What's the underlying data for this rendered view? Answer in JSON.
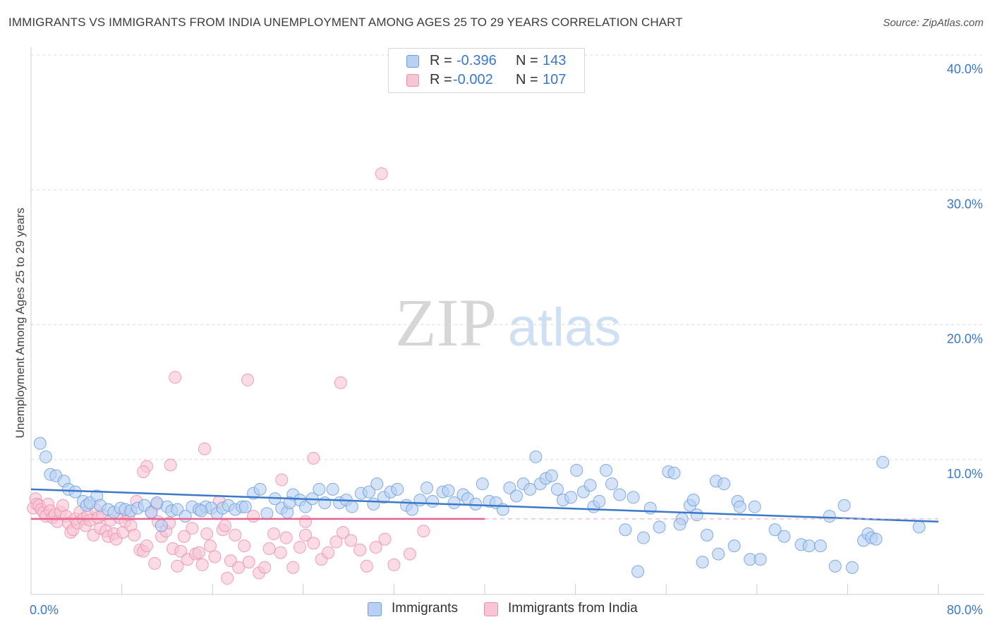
{
  "title": "IMMIGRANTS VS IMMIGRANTS FROM INDIA UNEMPLOYMENT AMONG AGES 25 TO 29 YEARS CORRELATION CHART",
  "source": "Source: ZipAtlas.com",
  "watermark": {
    "zip": "ZIP",
    "atlas": "atlas"
  },
  "stats": {
    "r_label": "R =",
    "n_label": "N =",
    "series1": {
      "r": "-0.396",
      "n": "143"
    },
    "series2": {
      "r": "-0.002",
      "n": "107"
    }
  },
  "colors": {
    "blue_fill": "#b8d1f3",
    "blue_stroke": "#6d9fe0",
    "blue_line": "#3a78c9",
    "pink_fill": "#f8c5d4",
    "pink_stroke": "#ee8fae",
    "pink_line": "#e8628d",
    "axis_text": "#3a78c9",
    "grid": "#dddddd"
  },
  "chart_data": {
    "type": "scatter",
    "title": "IMMIGRANTS VS IMMIGRANTS FROM INDIA UNEMPLOYMENT AMONG AGES 25 TO 29 YEARS CORRELATION CHART",
    "xlabel": "",
    "ylabel": "Unemployment Among Ages 25 to 29 years",
    "xlim": [
      0,
      80
    ],
    "ylim": [
      0,
      40
    ],
    "x_tick_labels": [
      "0.0%",
      "80.0%"
    ],
    "y_ticks": [
      10,
      20,
      30,
      40
    ],
    "y_tick_labels": [
      "10.0%",
      "20.0%",
      "30.0%",
      "40.0%"
    ],
    "legend_position": "bottom-center",
    "series": [
      {
        "name": "Immigrants",
        "r": -0.396,
        "n": 143,
        "trend": {
          "x": [
            0,
            80
          ],
          "y": [
            7.8,
            5.4
          ]
        },
        "points": [
          [
            0.8,
            11.2
          ],
          [
            1.3,
            10.2
          ],
          [
            1.7,
            8.9
          ],
          [
            2.2,
            8.8
          ],
          [
            2.9,
            8.4
          ],
          [
            3.3,
            7.8
          ],
          [
            3.9,
            7.6
          ],
          [
            4.6,
            6.9
          ],
          [
            4.9,
            6.6
          ],
          [
            5.2,
            6.8
          ],
          [
            5.8,
            7.3
          ],
          [
            6.1,
            6.6
          ],
          [
            6.8,
            6.3
          ],
          [
            7.3,
            6.1
          ],
          [
            7.9,
            6.4
          ],
          [
            8.3,
            6.3
          ],
          [
            8.8,
            6.2
          ],
          [
            9.4,
            6.4
          ],
          [
            10.0,
            6.6
          ],
          [
            10.6,
            6.1
          ],
          [
            11.1,
            6.8
          ],
          [
            11.5,
            5.1
          ],
          [
            12.0,
            6.5
          ],
          [
            12.4,
            6.2
          ],
          [
            12.9,
            6.3
          ],
          [
            13.6,
            5.8
          ],
          [
            14.2,
            6.5
          ],
          [
            14.8,
            6.3
          ],
          [
            15.4,
            6.5
          ],
          [
            15.9,
            6.4
          ],
          [
            16.4,
            6.0
          ],
          [
            16.9,
            6.4
          ],
          [
            17.4,
            6.6
          ],
          [
            18.0,
            6.3
          ],
          [
            18.6,
            6.5
          ],
          [
            18.9,
            6.5
          ],
          [
            19.6,
            7.5
          ],
          [
            20.2,
            7.8
          ],
          [
            20.8,
            6.0
          ],
          [
            21.5,
            7.1
          ],
          [
            22.1,
            6.4
          ],
          [
            22.6,
            6.1
          ],
          [
            23.1,
            7.4
          ],
          [
            23.7,
            7.0
          ],
          [
            24.2,
            6.5
          ],
          [
            24.8,
            7.1
          ],
          [
            25.4,
            7.8
          ],
          [
            25.9,
            6.8
          ],
          [
            26.6,
            7.8
          ],
          [
            27.2,
            6.8
          ],
          [
            27.8,
            7.0
          ],
          [
            28.3,
            6.5
          ],
          [
            29.1,
            7.5
          ],
          [
            29.8,
            7.6
          ],
          [
            30.5,
            8.2
          ],
          [
            31.1,
            7.2
          ],
          [
            31.7,
            7.6
          ],
          [
            32.3,
            7.8
          ],
          [
            33.1,
            6.6
          ],
          [
            33.6,
            6.3
          ],
          [
            34.3,
            7.0
          ],
          [
            34.9,
            7.9
          ],
          [
            35.4,
            6.9
          ],
          [
            36.3,
            7.6
          ],
          [
            36.8,
            7.7
          ],
          [
            37.3,
            6.8
          ],
          [
            38.1,
            7.4
          ],
          [
            38.5,
            7.1
          ],
          [
            39.2,
            6.7
          ],
          [
            39.8,
            8.2
          ],
          [
            40.4,
            6.9
          ],
          [
            41.0,
            6.8
          ],
          [
            41.6,
            6.3
          ],
          [
            42.2,
            7.9
          ],
          [
            42.8,
            7.3
          ],
          [
            43.4,
            8.2
          ],
          [
            44.0,
            7.8
          ],
          [
            44.5,
            10.2
          ],
          [
            44.9,
            8.2
          ],
          [
            45.4,
            8.6
          ],
          [
            45.9,
            8.8
          ],
          [
            46.4,
            7.8
          ],
          [
            46.9,
            7.0
          ],
          [
            47.6,
            7.2
          ],
          [
            48.1,
            9.2
          ],
          [
            48.7,
            7.6
          ],
          [
            49.3,
            8.1
          ],
          [
            49.6,
            6.5
          ],
          [
            50.1,
            6.9
          ],
          [
            50.7,
            9.2
          ],
          [
            51.2,
            8.2
          ],
          [
            51.9,
            7.4
          ],
          [
            52.4,
            4.8
          ],
          [
            53.1,
            7.2
          ],
          [
            54.0,
            4.2
          ],
          [
            54.6,
            6.4
          ],
          [
            55.4,
            5.0
          ],
          [
            56.2,
            9.1
          ],
          [
            56.7,
            9.0
          ],
          [
            57.4,
            5.6
          ],
          [
            58.1,
            6.6
          ],
          [
            58.4,
            7.0
          ],
          [
            58.7,
            5.9
          ],
          [
            59.6,
            4.4
          ],
          [
            60.4,
            8.4
          ],
          [
            61.1,
            8.2
          ],
          [
            62.3,
            6.9
          ],
          [
            62.5,
            6.5
          ],
          [
            63.8,
            6.5
          ],
          [
            62.0,
            3.6
          ],
          [
            60.6,
            3.0
          ],
          [
            59.2,
            2.4
          ],
          [
            63.4,
            2.6
          ],
          [
            64.3,
            2.6
          ],
          [
            65.6,
            4.8
          ],
          [
            66.4,
            4.3
          ],
          [
            67.9,
            3.7
          ],
          [
            68.6,
            3.6
          ],
          [
            69.6,
            3.6
          ],
          [
            70.4,
            5.8
          ],
          [
            70.9,
            2.1
          ],
          [
            71.7,
            6.6
          ],
          [
            72.4,
            2.0
          ],
          [
            73.4,
            4.0
          ],
          [
            73.8,
            4.5
          ],
          [
            74.1,
            4.2
          ],
          [
            74.5,
            4.1
          ],
          [
            75.1,
            9.8
          ],
          [
            78.3,
            5.0
          ],
          [
            53.5,
            1.7
          ],
          [
            57.2,
            5.2
          ],
          [
            15.0,
            6.2
          ],
          [
            22.8,
            6.8
          ],
          [
            30.2,
            6.7
          ]
        ]
      },
      {
        "name": "Immigrants from India",
        "r": -0.002,
        "n": 107,
        "trend": {
          "x": [
            0,
            40
          ],
          "y": [
            5.6,
            5.6
          ]
        },
        "points": [
          [
            0.2,
            6.4
          ],
          [
            0.4,
            7.1
          ],
          [
            0.5,
            6.7
          ],
          [
            0.7,
            6.6
          ],
          [
            0.9,
            6.3
          ],
          [
            1.1,
            6.1
          ],
          [
            1.3,
            5.8
          ],
          [
            1.5,
            6.7
          ],
          [
            1.7,
            6.2
          ],
          [
            1.9,
            5.7
          ],
          [
            2.1,
            5.9
          ],
          [
            2.3,
            5.4
          ],
          [
            2.6,
            6.1
          ],
          [
            2.8,
            6.6
          ],
          [
            3.1,
            5.8
          ],
          [
            3.3,
            5.3
          ],
          [
            3.5,
            4.6
          ],
          [
            3.7,
            4.8
          ],
          [
            3.9,
            5.6
          ],
          [
            4.1,
            5.3
          ],
          [
            4.3,
            6.1
          ],
          [
            4.6,
            5.6
          ],
          [
            4.8,
            5.1
          ],
          [
            5.0,
            5.9
          ],
          [
            5.2,
            5.5
          ],
          [
            5.5,
            4.4
          ],
          [
            5.7,
            6.3
          ],
          [
            5.9,
            5.7
          ],
          [
            6.1,
            4.9
          ],
          [
            6.3,
            5.9
          ],
          [
            6.6,
            4.7
          ],
          [
            6.8,
            4.3
          ],
          [
            7.0,
            5.5
          ],
          [
            7.3,
            4.5
          ],
          [
            7.5,
            4.1
          ],
          [
            7.8,
            5.7
          ],
          [
            8.1,
            4.6
          ],
          [
            8.3,
            5.4
          ],
          [
            8.6,
            5.9
          ],
          [
            8.8,
            5.1
          ],
          [
            9.1,
            4.4
          ],
          [
            9.3,
            6.9
          ],
          [
            9.6,
            3.3
          ],
          [
            9.9,
            3.2
          ],
          [
            10.2,
            3.6
          ],
          [
            10.6,
            6.1
          ],
          [
            10.9,
            2.3
          ],
          [
            11.2,
            5.4
          ],
          [
            11.5,
            4.3
          ],
          [
            11.9,
            4.7
          ],
          [
            12.2,
            5.3
          ],
          [
            12.5,
            3.4
          ],
          [
            12.9,
            2.1
          ],
          [
            13.2,
            3.2
          ],
          [
            13.5,
            4.3
          ],
          [
            13.8,
            2.6
          ],
          [
            14.2,
            4.9
          ],
          [
            14.5,
            3.0
          ],
          [
            14.8,
            3.1
          ],
          [
            15.1,
            2.2
          ],
          [
            15.5,
            4.5
          ],
          [
            15.8,
            3.6
          ],
          [
            16.2,
            2.8
          ],
          [
            16.6,
            6.9
          ],
          [
            16.9,
            4.8
          ],
          [
            17.3,
            1.2
          ],
          [
            17.6,
            2.5
          ],
          [
            18.0,
            4.4
          ],
          [
            18.3,
            2.0
          ],
          [
            18.8,
            3.6
          ],
          [
            19.2,
            2.4
          ],
          [
            19.6,
            5.8
          ],
          [
            20.1,
            1.6
          ],
          [
            20.6,
            2.0
          ],
          [
            21.0,
            3.4
          ],
          [
            21.4,
            4.5
          ],
          [
            22.0,
            3.1
          ],
          [
            22.5,
            4.2
          ],
          [
            23.1,
            2.0
          ],
          [
            23.7,
            3.5
          ],
          [
            24.2,
            4.4
          ],
          [
            24.9,
            3.8
          ],
          [
            25.6,
            2.6
          ],
          [
            26.2,
            3.1
          ],
          [
            26.9,
            3.9
          ],
          [
            27.5,
            4.6
          ],
          [
            28.2,
            4.0
          ],
          [
            29.0,
            3.3
          ],
          [
            29.6,
            2.1
          ],
          [
            30.4,
            3.5
          ],
          [
            31.2,
            4.1
          ],
          [
            32.0,
            2.2
          ],
          [
            33.4,
            3.0
          ],
          [
            34.6,
            4.7
          ],
          [
            12.7,
            16.1
          ],
          [
            19.1,
            15.9
          ],
          [
            27.3,
            15.7
          ],
          [
            30.9,
            31.2
          ],
          [
            15.3,
            10.8
          ],
          [
            12.3,
            9.6
          ],
          [
            10.2,
            9.5
          ],
          [
            9.9,
            9.1
          ],
          [
            24.9,
            10.1
          ],
          [
            22.1,
            8.5
          ],
          [
            11.1,
            6.7
          ],
          [
            24.2,
            5.4
          ],
          [
            17.1,
            5.1
          ]
        ]
      }
    ]
  }
}
